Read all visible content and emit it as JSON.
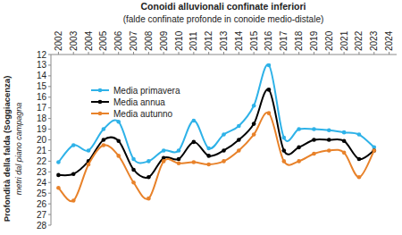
{
  "chart_data": {
    "type": "line",
    "title": "Conoidi alluvionali confinate inferiori",
    "subtitle": "(falde confinate  profonde in conoide medio-distale)",
    "y_label": "Profondità della falda (Soggiacenza)",
    "y_sublabel": "metri dal piano campagna",
    "x": [
      2002,
      2003,
      2004,
      2005,
      2006,
      2007,
      2008,
      2009,
      2010,
      2011,
      2012,
      2013,
      2014,
      2015,
      2016,
      2017,
      2018,
      2019,
      2020,
      2021,
      2022,
      2023
    ],
    "series": [
      {
        "name": "Media primavera",
        "color": "#2eb2e8",
        "values": [
          22.1,
          20.5,
          21.0,
          19.0,
          18.3,
          21.8,
          22.0,
          21.0,
          21.0,
          18.2,
          20.8,
          19.5,
          18.7,
          16.8,
          13.0,
          19.8,
          19.0,
          19.0,
          19.1,
          19.3,
          19.5,
          20.7
        ]
      },
      {
        "name": "Media annua",
        "color": "#000000",
        "values": [
          23.3,
          23.2,
          22.0,
          20.0,
          20.1,
          22.8,
          23.5,
          21.7,
          21.8,
          20.2,
          21.5,
          21.0,
          20.0,
          18.5,
          15.3,
          21.0,
          20.7,
          20.0,
          20.0,
          20.1,
          21.8,
          21.0
        ]
      },
      {
        "name": "Media autunno",
        "color": "#e8822a",
        "values": [
          24.5,
          25.7,
          22.3,
          20.5,
          21.5,
          24.0,
          25.5,
          22.0,
          22.2,
          22.1,
          22.3,
          22.0,
          21.0,
          19.5,
          17.5,
          22.0,
          22.0,
          21.3,
          21.0,
          21.2,
          23.5,
          21.0
        ]
      }
    ],
    "xlim": [
      2001.5,
      2024.5
    ],
    "xticks": [
      2002,
      2003,
      2004,
      2005,
      2006,
      2007,
      2008,
      2009,
      2010,
      2011,
      2012,
      2013,
      2014,
      2015,
      2016,
      2017,
      2018,
      2019,
      2020,
      2021,
      2022,
      2023,
      2024
    ],
    "ylim": [
      12,
      28
    ],
    "yticks": [
      12,
      13,
      14,
      15,
      16,
      17,
      18,
      19,
      20,
      21,
      22,
      23,
      24,
      25,
      26,
      27,
      28
    ],
    "grid": false,
    "legend": "top-left",
    "marker": "circle",
    "line_style": "smooth"
  }
}
